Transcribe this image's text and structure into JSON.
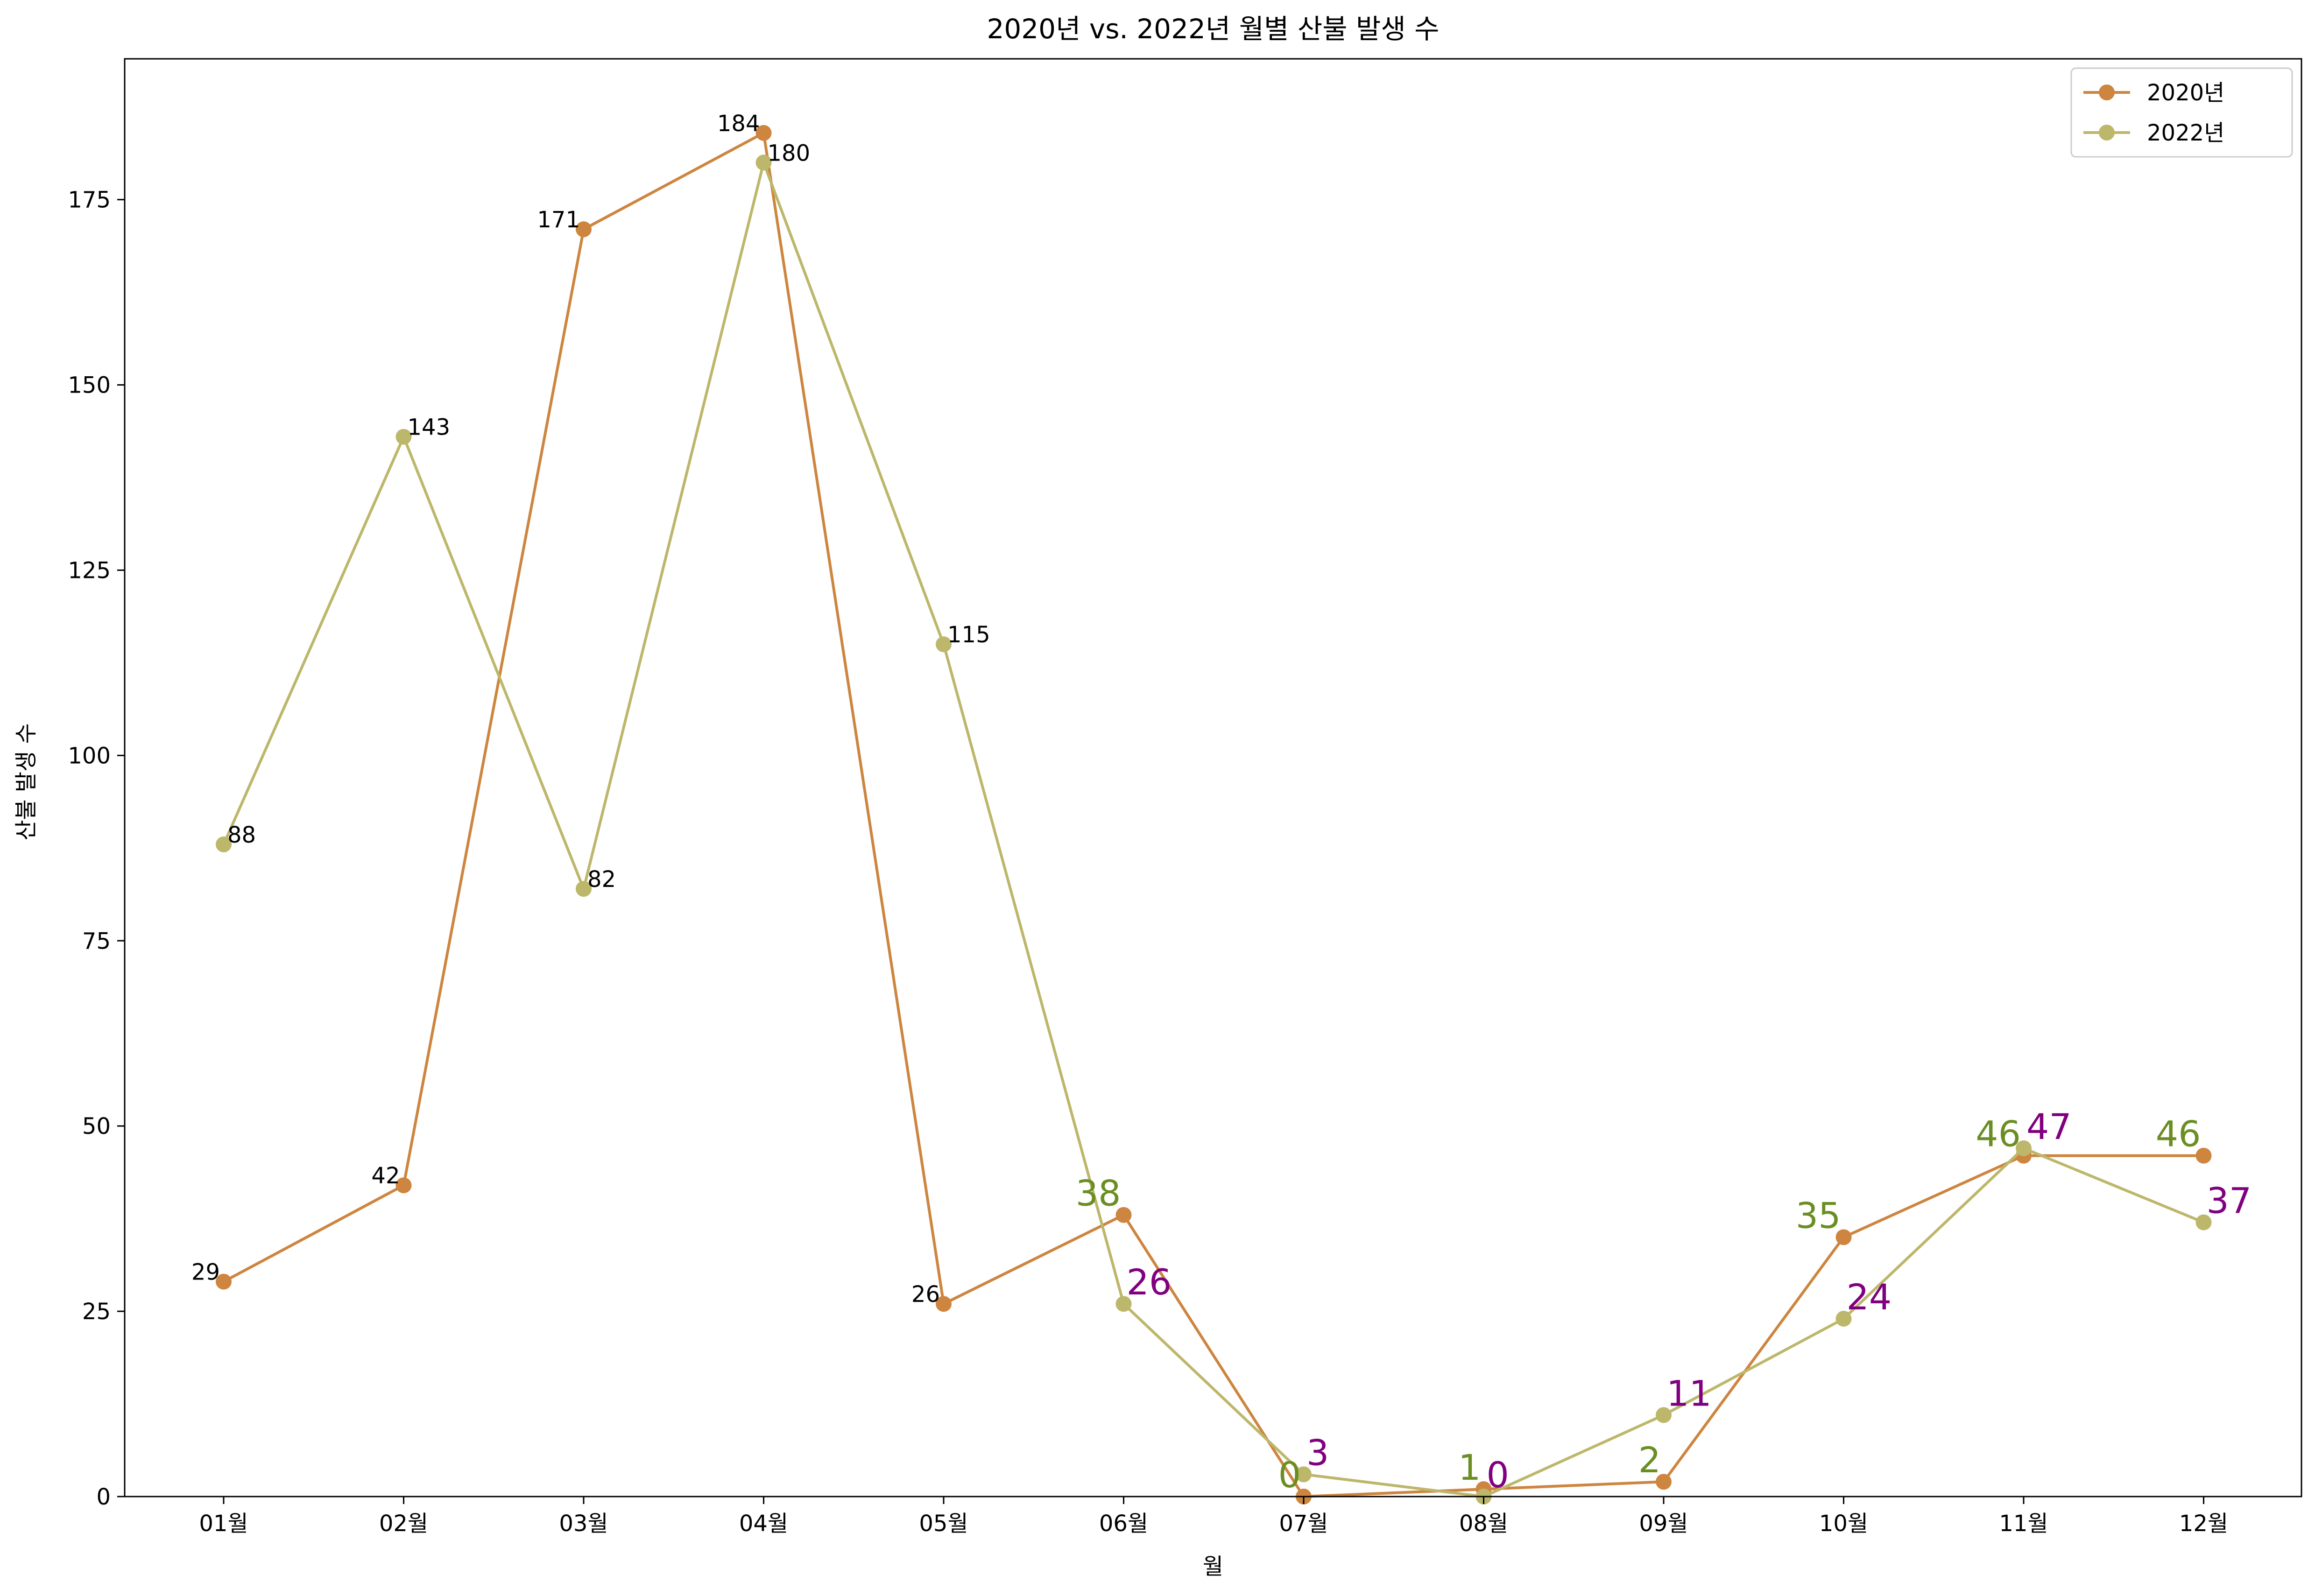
{
  "chart_data": {
    "type": "line",
    "title": "2020년 vs. 2022년 월별 산불 발생 수",
    "xlabel": "월",
    "ylabel": "산불 발생 수",
    "categories": [
      "01월",
      "02월",
      "03월",
      "04월",
      "05월",
      "06월",
      "07월",
      "08월",
      "09월",
      "10월",
      "11월",
      "12월"
    ],
    "ylim": [
      0,
      194
    ],
    "yticks": [
      0,
      25,
      50,
      75,
      100,
      125,
      150,
      175
    ],
    "grid": false,
    "legend_position": "top-right",
    "series": [
      {
        "name": "2020년",
        "color": "#cd853f",
        "values": [
          29,
          42,
          171,
          184,
          26,
          38,
          0,
          1,
          2,
          35,
          46,
          46
        ]
      },
      {
        "name": "2022년",
        "color": "#bdb76b",
        "values": [
          88,
          143,
          82,
          180,
          115,
          26,
          3,
          0,
          11,
          24,
          47,
          37
        ]
      }
    ],
    "label_colors": {
      "small": "#000000",
      "large_2020": "#6b8e23",
      "large_2022": "#800080"
    }
  }
}
